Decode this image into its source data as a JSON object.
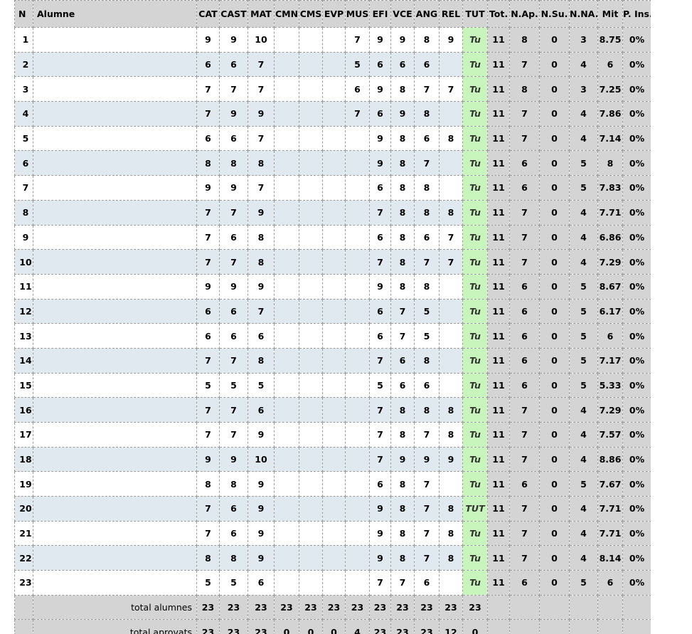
{
  "table": {
    "headers": [
      "N",
      "Alumne",
      "CAT",
      "CAST",
      "MAT",
      "CMN",
      "CMS",
      "EVP",
      "MUS",
      "EFI",
      "VCE",
      "ANG",
      "REL",
      "TUT",
      "Tot.",
      "N.Ap.",
      "N.Su.",
      "N.NA.",
      "Mit",
      "P. Ins."
    ],
    "tut_value": "Tu",
    "rows": [
      {
        "n": "1",
        "name": "",
        "cat": "9",
        "cast": "9",
        "mat": "10",
        "cmn": "",
        "cms": "",
        "evp": "",
        "mus": "7",
        "efi": "9",
        "vce": "9",
        "ang": "8",
        "rel": "9",
        "tut": "Tu",
        "tot": "11",
        "nap": "8",
        "nsu": "0",
        "nna": "3",
        "mit": "8.75",
        "pins": "0%"
      },
      {
        "n": "2",
        "name": "",
        "cat": "6",
        "cast": "6",
        "mat": "7",
        "cmn": "",
        "cms": "",
        "evp": "",
        "mus": "5",
        "efi": "6",
        "vce": "6",
        "ang": "6",
        "rel": "",
        "tut": "Tu",
        "tot": "11",
        "nap": "7",
        "nsu": "0",
        "nna": "4",
        "mit": "6",
        "pins": "0%"
      },
      {
        "n": "3",
        "name": "",
        "cat": "7",
        "cast": "7",
        "mat": "7",
        "cmn": "",
        "cms": "",
        "evp": "",
        "mus": "6",
        "efi": "9",
        "vce": "8",
        "ang": "7",
        "rel": "7",
        "tut": "Tu",
        "tot": "11",
        "nap": "8",
        "nsu": "0",
        "nna": "3",
        "mit": "7.25",
        "pins": "0%"
      },
      {
        "n": "4",
        "name": "",
        "cat": "7",
        "cast": "9",
        "mat": "9",
        "cmn": "",
        "cms": "",
        "evp": "",
        "mus": "7",
        "efi": "6",
        "vce": "9",
        "ang": "8",
        "rel": "",
        "tut": "Tu",
        "tot": "11",
        "nap": "7",
        "nsu": "0",
        "nna": "4",
        "mit": "7.86",
        "pins": "0%"
      },
      {
        "n": "5",
        "name": "",
        "cat": "6",
        "cast": "6",
        "mat": "7",
        "cmn": "",
        "cms": "",
        "evp": "",
        "mus": "",
        "efi": "9",
        "vce": "8",
        "ang": "6",
        "rel": "8",
        "tut": "Tu",
        "tot": "11",
        "nap": "7",
        "nsu": "0",
        "nna": "4",
        "mit": "7.14",
        "pins": "0%"
      },
      {
        "n": "6",
        "name": "",
        "cat": "8",
        "cast": "8",
        "mat": "8",
        "cmn": "",
        "cms": "",
        "evp": "",
        "mus": "",
        "efi": "9",
        "vce": "8",
        "ang": "7",
        "rel": "",
        "tut": "Tu",
        "tot": "11",
        "nap": "6",
        "nsu": "0",
        "nna": "5",
        "mit": "8",
        "pins": "0%"
      },
      {
        "n": "7",
        "name": "",
        "cat": "9",
        "cast": "9",
        "mat": "7",
        "cmn": "",
        "cms": "",
        "evp": "",
        "mus": "",
        "efi": "6",
        "vce": "8",
        "ang": "8",
        "rel": "",
        "tut": "Tu",
        "tot": "11",
        "nap": "6",
        "nsu": "0",
        "nna": "5",
        "mit": "7.83",
        "pins": "0%"
      },
      {
        "n": "8",
        "name": "",
        "cat": "7",
        "cast": "7",
        "mat": "9",
        "cmn": "",
        "cms": "",
        "evp": "",
        "mus": "",
        "efi": "7",
        "vce": "8",
        "ang": "8",
        "rel": "8",
        "tut": "Tu",
        "tot": "11",
        "nap": "7",
        "nsu": "0",
        "nna": "4",
        "mit": "7.71",
        "pins": "0%"
      },
      {
        "n": "9",
        "name": "",
        "cat": "7",
        "cast": "6",
        "mat": "8",
        "cmn": "",
        "cms": "",
        "evp": "",
        "mus": "",
        "efi": "6",
        "vce": "8",
        "ang": "6",
        "rel": "7",
        "tut": "Tu",
        "tot": "11",
        "nap": "7",
        "nsu": "0",
        "nna": "4",
        "mit": "6.86",
        "pins": "0%"
      },
      {
        "n": "10",
        "name": "",
        "cat": "7",
        "cast": "7",
        "mat": "8",
        "cmn": "",
        "cms": "",
        "evp": "",
        "mus": "",
        "efi": "7",
        "vce": "8",
        "ang": "7",
        "rel": "7",
        "tut": "Tu",
        "tot": "11",
        "nap": "7",
        "nsu": "0",
        "nna": "4",
        "mit": "7.29",
        "pins": "0%"
      },
      {
        "n": "11",
        "name": "",
        "cat": "9",
        "cast": "9",
        "mat": "9",
        "cmn": "",
        "cms": "",
        "evp": "",
        "mus": "",
        "efi": "9",
        "vce": "8",
        "ang": "8",
        "rel": "",
        "tut": "Tu",
        "tot": "11",
        "nap": "6",
        "nsu": "0",
        "nna": "5",
        "mit": "8.67",
        "pins": "0%"
      },
      {
        "n": "12",
        "name": "",
        "cat": "6",
        "cast": "6",
        "mat": "7",
        "cmn": "",
        "cms": "",
        "evp": "",
        "mus": "",
        "efi": "6",
        "vce": "7",
        "ang": "5",
        "rel": "",
        "tut": "Tu",
        "tot": "11",
        "nap": "6",
        "nsu": "0",
        "nna": "5",
        "mit": "6.17",
        "pins": "0%"
      },
      {
        "n": "13",
        "name": "",
        "cat": "6",
        "cast": "6",
        "mat": "6",
        "cmn": "",
        "cms": "",
        "evp": "",
        "mus": "",
        "efi": "6",
        "vce": "7",
        "ang": "5",
        "rel": "",
        "tut": "Tu",
        "tot": "11",
        "nap": "6",
        "nsu": "0",
        "nna": "5",
        "mit": "6",
        "pins": "0%"
      },
      {
        "n": "14",
        "name": "",
        "cat": "7",
        "cast": "7",
        "mat": "8",
        "cmn": "",
        "cms": "",
        "evp": "",
        "mus": "",
        "efi": "7",
        "vce": "6",
        "ang": "8",
        "rel": "",
        "tut": "Tu",
        "tot": "11",
        "nap": "6",
        "nsu": "0",
        "nna": "5",
        "mit": "7.17",
        "pins": "0%"
      },
      {
        "n": "15",
        "name": "",
        "cat": "5",
        "cast": "5",
        "mat": "5",
        "cmn": "",
        "cms": "",
        "evp": "",
        "mus": "",
        "efi": "5",
        "vce": "6",
        "ang": "6",
        "rel": "",
        "tut": "Tu",
        "tot": "11",
        "nap": "6",
        "nsu": "0",
        "nna": "5",
        "mit": "5.33",
        "pins": "0%"
      },
      {
        "n": "16",
        "name": "",
        "cat": "7",
        "cast": "7",
        "mat": "6",
        "cmn": "",
        "cms": "",
        "evp": "",
        "mus": "",
        "efi": "7",
        "vce": "8",
        "ang": "8",
        "rel": "8",
        "tut": "Tu",
        "tot": "11",
        "nap": "7",
        "nsu": "0",
        "nna": "4",
        "mit": "7.29",
        "pins": "0%"
      },
      {
        "n": "17",
        "name": "",
        "cat": "7",
        "cast": "7",
        "mat": "9",
        "cmn": "",
        "cms": "",
        "evp": "",
        "mus": "",
        "efi": "7",
        "vce": "8",
        "ang": "7",
        "rel": "8",
        "tut": "Tu",
        "tot": "11",
        "nap": "7",
        "nsu": "0",
        "nna": "4",
        "mit": "7.57",
        "pins": "0%"
      },
      {
        "n": "18",
        "name": "",
        "cat": "9",
        "cast": "9",
        "mat": "10",
        "cmn": "",
        "cms": "",
        "evp": "",
        "mus": "",
        "efi": "7",
        "vce": "9",
        "ang": "9",
        "rel": "9",
        "tut": "Tu",
        "tot": "11",
        "nap": "7",
        "nsu": "0",
        "nna": "4",
        "mit": "8.86",
        "pins": "0%"
      },
      {
        "n": "19",
        "name": "",
        "cat": "8",
        "cast": "8",
        "mat": "9",
        "cmn": "",
        "cms": "",
        "evp": "",
        "mus": "",
        "efi": "6",
        "vce": "8",
        "ang": "7",
        "rel": "",
        "tut": "Tu",
        "tot": "11",
        "nap": "6",
        "nsu": "0",
        "nna": "5",
        "mit": "7.67",
        "pins": "0%"
      },
      {
        "n": "20",
        "name": "",
        "cat": "7",
        "cast": "6",
        "mat": "9",
        "cmn": "",
        "cms": "",
        "evp": "",
        "mus": "",
        "efi": "9",
        "vce": "8",
        "ang": "7",
        "rel": "8",
        "tut": "TUT",
        "tot": "11",
        "nap": "7",
        "nsu": "0",
        "nna": "4",
        "mit": "7.71",
        "pins": "0%"
      },
      {
        "n": "21",
        "name": "",
        "cat": "7",
        "cast": "6",
        "mat": "9",
        "cmn": "",
        "cms": "",
        "evp": "",
        "mus": "",
        "efi": "9",
        "vce": "8",
        "ang": "7",
        "rel": "8",
        "tut": "Tu",
        "tot": "11",
        "nap": "7",
        "nsu": "0",
        "nna": "4",
        "mit": "7.71",
        "pins": "0%"
      },
      {
        "n": "22",
        "name": "",
        "cat": "8",
        "cast": "8",
        "mat": "9",
        "cmn": "",
        "cms": "",
        "evp": "",
        "mus": "",
        "efi": "9",
        "vce": "8",
        "ang": "7",
        "rel": "8",
        "tut": "Tu",
        "tot": "11",
        "nap": "7",
        "nsu": "0",
        "nna": "4",
        "mit": "8.14",
        "pins": "0%"
      },
      {
        "n": "23",
        "name": "",
        "cat": "5",
        "cast": "5",
        "mat": "6",
        "cmn": "",
        "cms": "",
        "evp": "",
        "mus": "",
        "efi": "7",
        "vce": "7",
        "ang": "6",
        "rel": "",
        "tut": "Tu",
        "tot": "11",
        "nap": "6",
        "nsu": "0",
        "nna": "5",
        "mit": "6",
        "pins": "0%"
      }
    ],
    "totals": [
      {
        "label": "total alumnes",
        "values": [
          "23",
          "23",
          "23",
          "23",
          "23",
          "23",
          "23",
          "23",
          "23",
          "23",
          "23",
          "23"
        ]
      },
      {
        "label": "total aprovats",
        "values": [
          "23",
          "23",
          "23",
          "0",
          "0",
          "0",
          "4",
          "23",
          "23",
          "23",
          "12",
          "0"
        ]
      }
    ]
  },
  "colors": {
    "header_bg": "#d4d4d4",
    "row_alt_bg": "#dfe9ef",
    "tut_bg": "#c8f5bb",
    "border": "#9a9a9a"
  }
}
